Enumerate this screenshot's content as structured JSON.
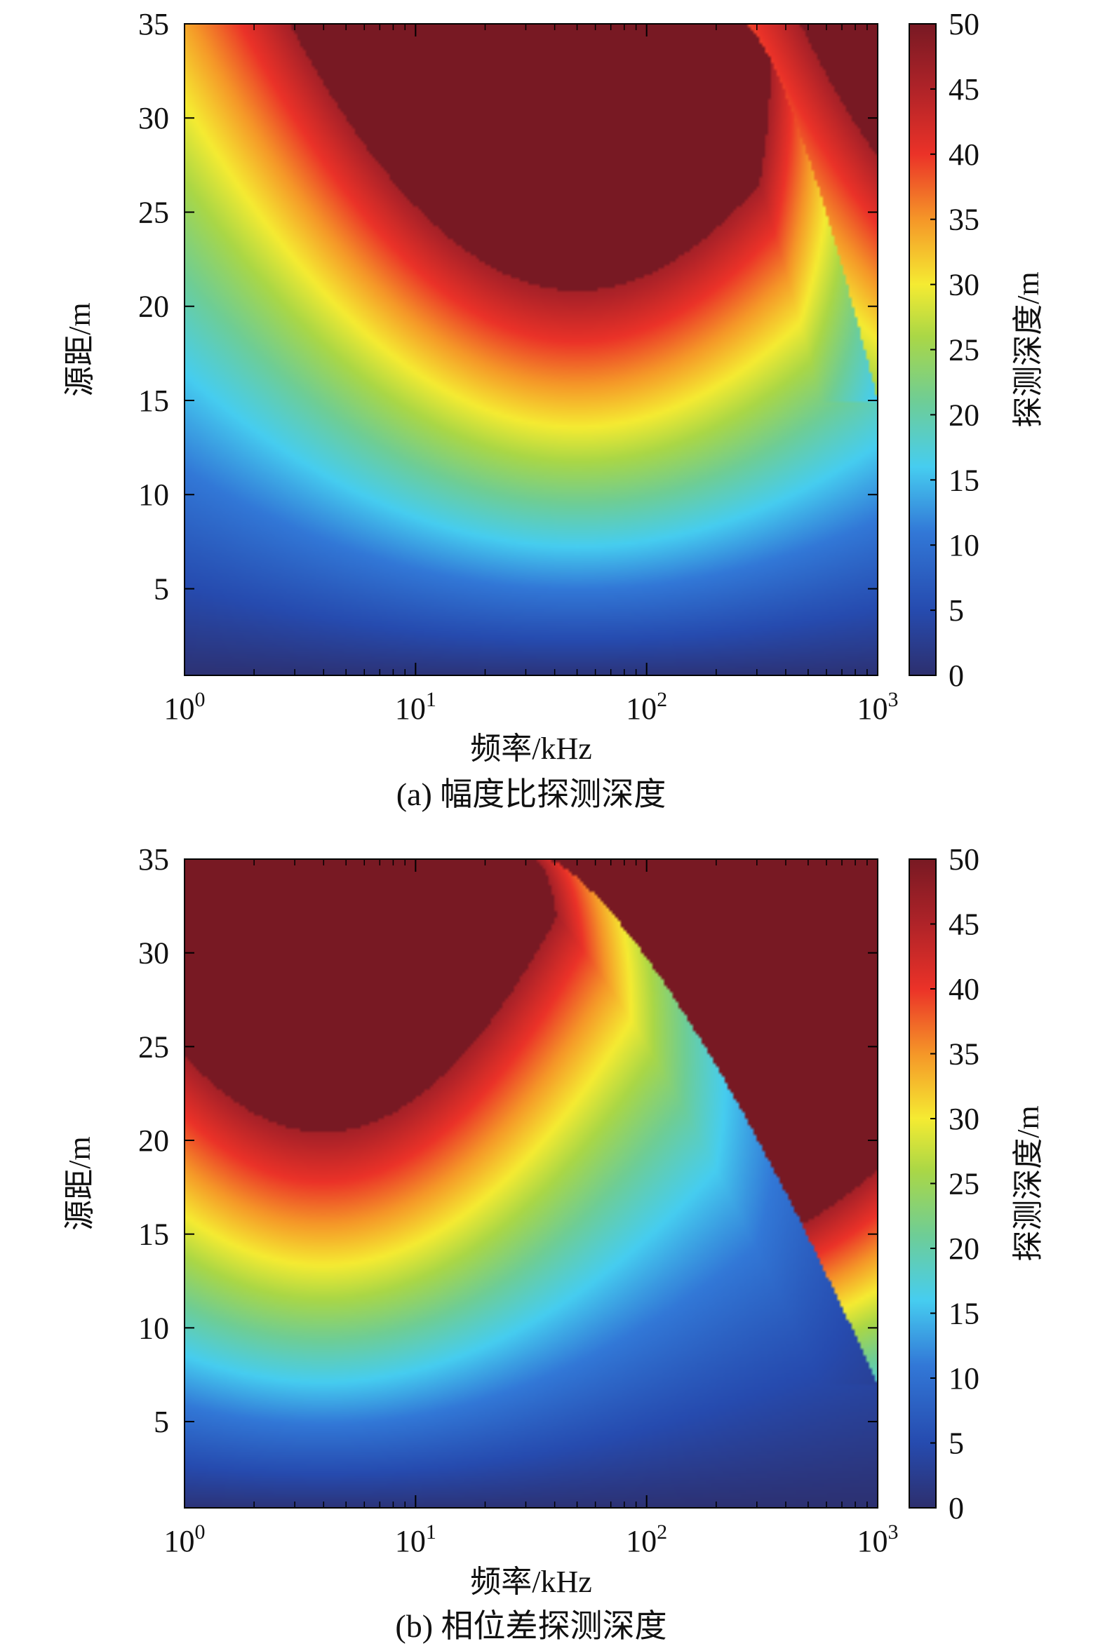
{
  "chart_data": [
    {
      "type": "heatmap",
      "caption": "(a) 幅度比探测深度",
      "xlabel": "频率/kHz",
      "ylabel": "源距/m",
      "colorbar_label": "探测深度/m",
      "x_scale": "log",
      "x_range_kHz": [
        1,
        1000
      ],
      "x_ticks": [
        {
          "exp": "0",
          "base": "10"
        },
        {
          "exp": "1",
          "base": "10"
        },
        {
          "exp": "2",
          "base": "10"
        },
        {
          "exp": "3",
          "base": "10"
        }
      ],
      "y_range": [
        0.4,
        35
      ],
      "y_ticks": [
        "5",
        "10",
        "15",
        "20",
        "25",
        "30",
        "35"
      ],
      "colorbar_range": [
        0,
        50
      ],
      "colorbar_ticks": [
        "0",
        "5",
        "10",
        "15",
        "20",
        "25",
        "30",
        "35",
        "40",
        "45",
        "50"
      ],
      "colormap": "jet (dark blue → blue → cyan → green → yellow → orange → red → dark red)",
      "value_clip": 46,
      "surface": "main lobe: depth peaks near 50 kHz, rising with source distance; secondary lobe above ~300 kHz, boundary running from (270 kHz, 35 m) to (1000 kHz, 15 m)",
      "main_lobe": {
        "peak_log10_kHz": 1.7,
        "width": 1.12,
        "y_gain": 2.4,
        "y_scale": 0.92
      },
      "discontinuity": {
        "top_log10_kHz": 2.43,
        "bottom_log10_kHz": 3.0,
        "bottom_y": 15
      },
      "second_lobe": {
        "peak_log10_kHz": 3.7,
        "width": 1.0,
        "y_gain": 2.2,
        "y_scale": 0.95
      }
    },
    {
      "type": "heatmap",
      "caption": "(b) 相位差探测深度",
      "xlabel": "频率/kHz",
      "ylabel": "源距/m",
      "colorbar_label": "探测深度/m",
      "x_scale": "log",
      "x_range_kHz": [
        1,
        1000
      ],
      "x_ticks": [
        {
          "exp": "0",
          "base": "10"
        },
        {
          "exp": "1",
          "base": "10"
        },
        {
          "exp": "2",
          "base": "10"
        },
        {
          "exp": "3",
          "base": "10"
        }
      ],
      "y_range": [
        0.4,
        35
      ],
      "y_ticks": [
        "5",
        "10",
        "15",
        "20",
        "25",
        "30",
        "35"
      ],
      "colorbar_range": [
        0,
        50
      ],
      "colorbar_ticks": [
        "0",
        "5",
        "10",
        "15",
        "20",
        "25",
        "30",
        "35",
        "40",
        "45",
        "50"
      ],
      "colormap": "jet (dark blue → blue → cyan → green → yellow → orange → red → dark red)",
      "value_clip": 46,
      "surface": "left lobe peaks near 4 kHz; right lobe peaks near 160 kHz (over 46 m at top); boundary curve from (37 kHz, 35 m) to (1000 kHz, 7 m)",
      "main_lobe": {
        "peak_log10_kHz": 0.6,
        "width": 1.0,
        "y_gain": 2.5,
        "y_scale": 0.9
      },
      "discontinuity": {
        "top_log10_kHz": 1.57,
        "bottom_log10_kHz": 3.0,
        "bottom_y": 7
      },
      "second_lobe": {
        "peak_log10_kHz": 2.2,
        "width": 1.05,
        "y_gain": 3.5,
        "y_scale": 0.94
      }
    }
  ]
}
